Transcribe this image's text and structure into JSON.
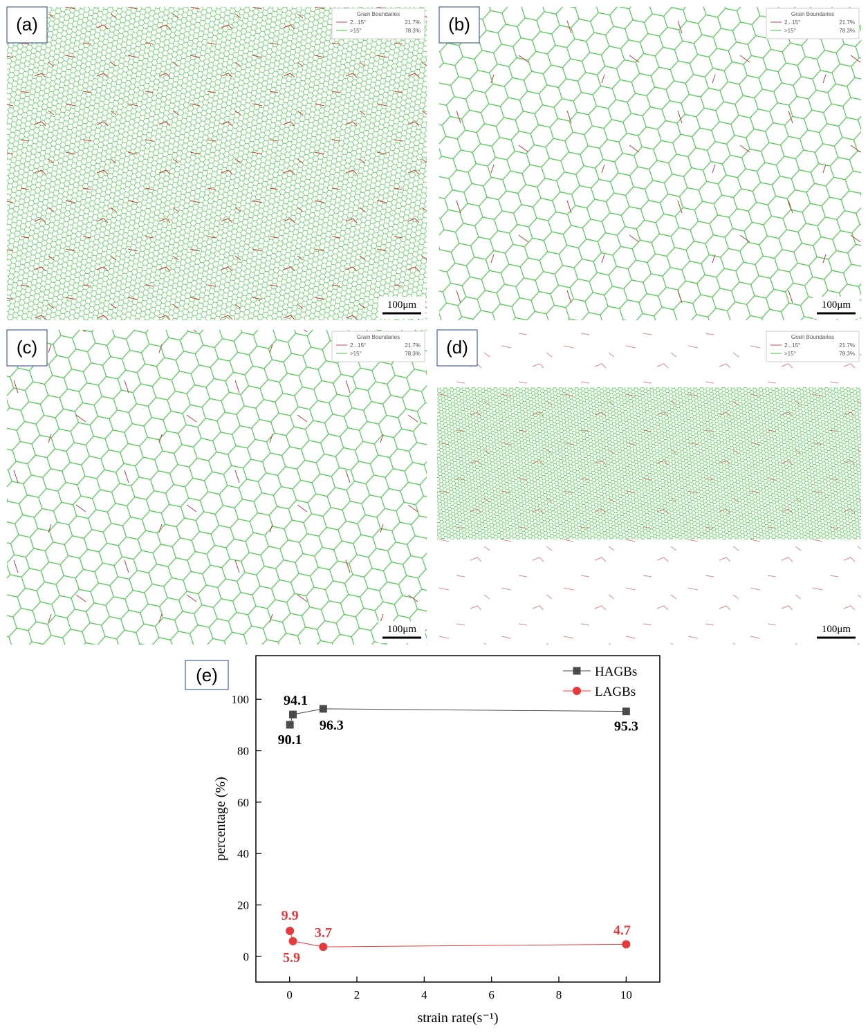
{
  "panels": [
    {
      "label": "(a)",
      "legend_title": "Grain Boundaries",
      "entries": [
        {
          "name": "2...15°",
          "value": "21.7%"
        },
        {
          "name": ">15°",
          "value": "78.3%"
        }
      ],
      "scale_bar": "100μm"
    },
    {
      "label": "(b)",
      "legend_title": "Grain Boundaries",
      "entries": [
        {
          "name": "2...15°",
          "value": "21.7%"
        },
        {
          "name": ">15°",
          "value": "78.3%"
        }
      ],
      "scale_bar": "100μm"
    },
    {
      "label": "(c)",
      "legend_title": "Grain Boundaries",
      "entries": [
        {
          "name": "2...15°",
          "value": "21.7%"
        },
        {
          "name": ">15°",
          "value": "78.3%"
        }
      ],
      "scale_bar": "100μm"
    },
    {
      "label": "(d)",
      "legend_title": "Grain Boundaries",
      "entries": [
        {
          "name": "2...15°",
          "value": "21.7%"
        },
        {
          "name": ">15°",
          "value": "78.3%"
        }
      ],
      "scale_bar": "100μm"
    }
  ],
  "chart_data": {
    "type": "line",
    "panel_label": "(e)",
    "xlabel": "strain rate(s⁻¹)",
    "ylabel": "percentage (%)",
    "x": [
      0.01,
      0.1,
      1,
      10
    ],
    "series": [
      {
        "name": "HAGBs",
        "color": "#4a4a4a",
        "marker": "square",
        "values": [
          90.1,
          94.1,
          96.3,
          95.3
        ]
      },
      {
        "name": "LAGBs",
        "color": "#e8393b",
        "marker": "circle",
        "values": [
          9.9,
          5.9,
          3.7,
          4.7
        ]
      }
    ],
    "xlim": [
      -1,
      11
    ],
    "xticks": [
      0,
      2,
      4,
      6,
      8,
      10
    ],
    "ylim": [
      -10,
      117
    ],
    "yticks": [
      0,
      20,
      40,
      60,
      80,
      100
    ],
    "legend": "upper right"
  }
}
